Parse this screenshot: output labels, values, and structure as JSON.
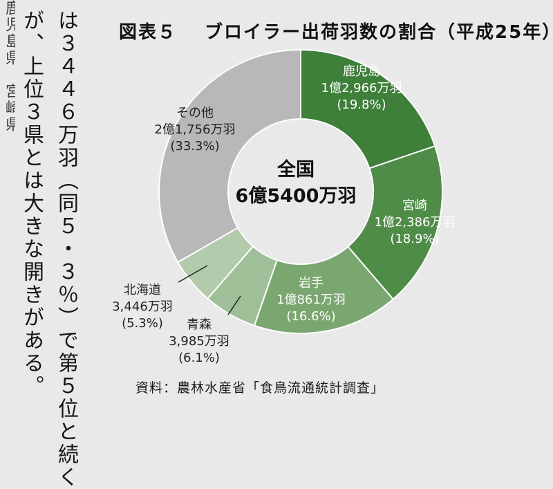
{
  "title": {
    "number": "図表５",
    "text": "ブロイラー出荷羽数の割合（平成25年）"
  },
  "left_text": {
    "col1": "は３４４６万羽（同５・３％）で第５位と続く",
    "col2": "が、上位３県とは大きな開きがある。"
  },
  "colors": {
    "accent_dark": "#3e7f3a",
    "accent_light": "#9bbb94",
    "other": "#b9b9b9"
  },
  "chart_data": {
    "type": "pie",
    "donut": true,
    "center_label": {
      "line1": "全国",
      "line2": "6億5400万羽"
    },
    "slices": [
      {
        "name": "鹿児島",
        "value_text": "1億2,966万羽",
        "percent_text": "(19.8%)",
        "value": 19.8,
        "color": "#3e7f3a"
      },
      {
        "name": "宮崎",
        "value_text": "1億2,386万羽",
        "percent_text": "(18.9%)",
        "value": 18.9,
        "color": "#4f8c47"
      },
      {
        "name": "岩手",
        "value_text": "1億861万羽",
        "percent_text": "(16.6%)",
        "value": 16.6,
        "color": "#7aa66f"
      },
      {
        "name": "青森",
        "value_text": "3,985万羽",
        "percent_text": "(6.1%)",
        "value": 6.1,
        "color": "#9fbf98"
      },
      {
        "name": "北海道",
        "value_text": "3,446万羽",
        "percent_text": "(5.3%)",
        "value": 5.3,
        "color": "#b3cbad"
      },
      {
        "name": "その他",
        "value_text": "2億1,756万羽",
        "percent_text": "(33.3%)",
        "value": 33.3,
        "color": "#b8b8b8"
      }
    ]
  },
  "source": "資料：農林水産省「食鳥流通統計調査」"
}
